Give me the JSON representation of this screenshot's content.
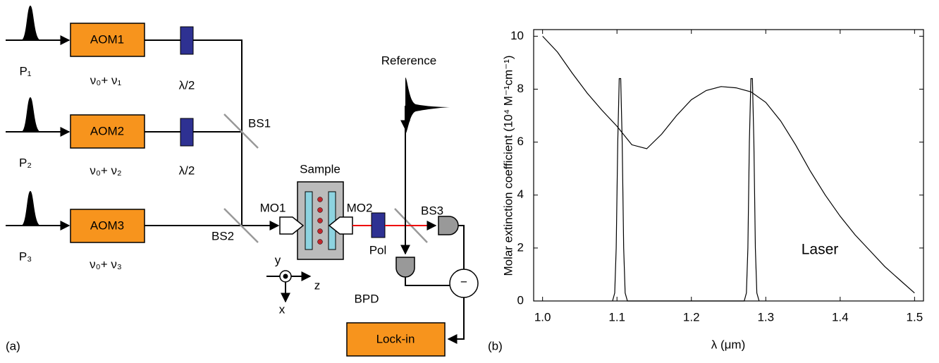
{
  "diagram": {
    "panel_label": "(a)",
    "aom": [
      "AOM1",
      "AOM2",
      "AOM3"
    ],
    "pulses": [
      "P₁",
      "P₂",
      "P₃"
    ],
    "frequencies": [
      "ν₀+ ν₁",
      "ν₀+ ν₂",
      "ν₀+ ν₃"
    ],
    "waveplates": [
      "λ/2",
      "λ/2"
    ],
    "beamsplitters": [
      "BS1",
      "BS2",
      "BS3"
    ],
    "objectives": [
      "MO1",
      "MO2"
    ],
    "sample": "Sample",
    "reference": "Reference",
    "polarizer": "Pol",
    "detector": "BPD",
    "subtract": "−",
    "lockin": "Lock-in",
    "axes": [
      "y",
      "z",
      "x"
    ]
  },
  "chart_data": {
    "type": "line",
    "panel_label": "(b)",
    "x_label": "λ (μm)",
    "y_label": "Molar extinction coefficient (10⁴ M⁻¹cm⁻¹)",
    "annotation": "Laser",
    "xlim": [
      0.988,
      1.512
    ],
    "ylim": [
      0,
      10.25
    ],
    "xticks": [
      {
        "value": 1,
        "label": "1.0"
      },
      1.1,
      1.2,
      1.3,
      1.4,
      1.5
    ],
    "yticks": [
      0,
      2,
      4,
      6,
      8,
      10
    ],
    "series": [
      {
        "color": "#000000",
        "x": [
          1.0,
          1.02,
          1.04,
          1.06,
          1.08,
          1.1,
          1.12,
          1.14,
          1.16,
          1.18,
          1.2,
          1.22,
          1.24,
          1.26,
          1.28,
          1.3,
          1.32,
          1.34,
          1.36,
          1.38,
          1.4,
          1.42,
          1.44,
          1.46,
          1.48,
          1.5
        ],
        "values": [
          10.0,
          9.4,
          8.6,
          7.85,
          7.2,
          6.6,
          5.9,
          5.75,
          6.3,
          7.0,
          7.6,
          7.95,
          8.1,
          8.05,
          7.9,
          7.5,
          6.8,
          5.9,
          4.9,
          4.0,
          3.2,
          2.5,
          1.9,
          1.3,
          0.8,
          0.3
        ]
      },
      {
        "color": "#000000",
        "x": [
          1.094,
          1.097,
          1.099,
          1.101,
          1.103,
          1.105,
          1.107,
          1.109,
          1.111,
          1.114,
          1.271,
          1.274,
          1.276,
          1.278,
          1.28,
          1.282,
          1.284,
          1.286,
          1.288,
          1.291
        ],
        "values": [
          0,
          0.3,
          2,
          6,
          8.4,
          8.4,
          6,
          2,
          0.3,
          0,
          0,
          0.3,
          2,
          6,
          8.4,
          8.4,
          6,
          2,
          0.3,
          0
        ]
      }
    ]
  }
}
